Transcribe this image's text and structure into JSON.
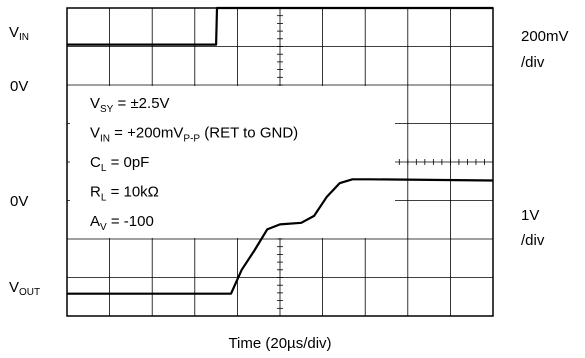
{
  "chart_data": {
    "type": "line",
    "xlabel": "Time (20µs/div)",
    "divisions": {
      "x": 10,
      "y": 8
    },
    "grid": true,
    "left_labels": {
      "vin": {
        "main": "V",
        "sub": "IN"
      },
      "zero_top": "0V",
      "zero_bottom": "0V",
      "vout": {
        "main": "V",
        "sub": "OUT"
      }
    },
    "right_labels": {
      "top_scale": "200mV",
      "top_unit": "/div",
      "bottom_scale": "1V",
      "bottom_unit": "/div"
    },
    "conditions": [
      {
        "parts": [
          [
            "V",
            ""
          ],
          [
            "SY",
            "sub"
          ],
          [
            " = ±2.5V",
            ""
          ]
        ]
      },
      {
        "parts": [
          [
            "V",
            ""
          ],
          [
            "IN",
            "sub"
          ],
          [
            " = +200mV",
            ""
          ],
          [
            "P-P",
            "sub"
          ],
          [
            " (RET to GND)",
            ""
          ]
        ]
      },
      {
        "parts": [
          [
            "C",
            ""
          ],
          [
            "L",
            "sub"
          ],
          [
            " =  0pF",
            ""
          ]
        ]
      },
      {
        "parts": [
          [
            "R",
            ""
          ],
          [
            "L",
            "sub"
          ],
          [
            " = 10kΩ",
            ""
          ]
        ]
      },
      {
        "parts": [
          [
            "A",
            ""
          ],
          [
            "V",
            "sub"
          ],
          [
            " = -100",
            ""
          ]
        ]
      }
    ],
    "series": [
      {
        "name": "VIN",
        "x_div": [
          0,
          3.5,
          3.52,
          10
        ],
        "y_div": [
          0.95,
          0.95,
          0.0,
          0.0
        ]
      },
      {
        "name": "VOUT",
        "x_div": [
          0,
          3.85,
          4.1,
          4.4,
          4.7,
          5.0,
          5.5,
          5.8,
          6.1,
          6.4,
          6.7,
          7.1,
          10
        ],
        "y_div": [
          7.42,
          7.42,
          6.8,
          6.3,
          5.75,
          5.62,
          5.58,
          5.4,
          4.9,
          4.55,
          4.45,
          4.45,
          4.48
        ]
      }
    ]
  }
}
